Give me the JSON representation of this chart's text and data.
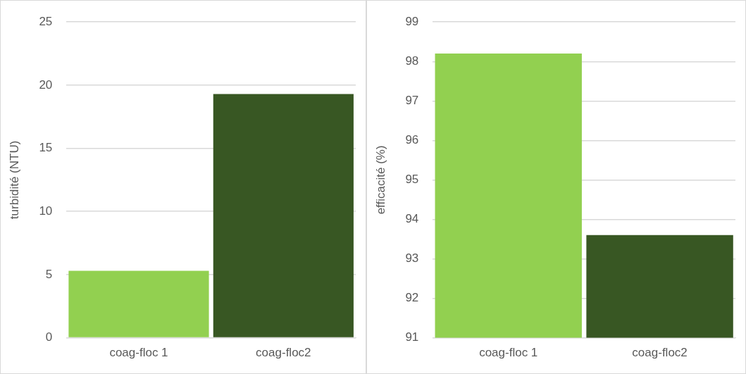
{
  "chart_data": [
    {
      "type": "bar",
      "ylabel": "turbidité (NTU)",
      "categories": [
        "coag-floc 1",
        "coag-floc2"
      ],
      "values": [
        5.3,
        19.3
      ],
      "colors": [
        "#92d050",
        "#385723"
      ],
      "ylim": [
        0,
        25
      ],
      "yticks": [
        0,
        5,
        10,
        15,
        20,
        25
      ],
      "grid": "y"
    },
    {
      "type": "bar",
      "ylabel": "efficacité (%)",
      "categories": [
        "coag-floc 1",
        "coag-floc2"
      ],
      "values": [
        98.2,
        93.6
      ],
      "colors": [
        "#92d050",
        "#385723"
      ],
      "ylim": [
        91,
        99
      ],
      "yticks": [
        91,
        92,
        93,
        94,
        95,
        96,
        97,
        98,
        99
      ],
      "grid": "y"
    }
  ]
}
